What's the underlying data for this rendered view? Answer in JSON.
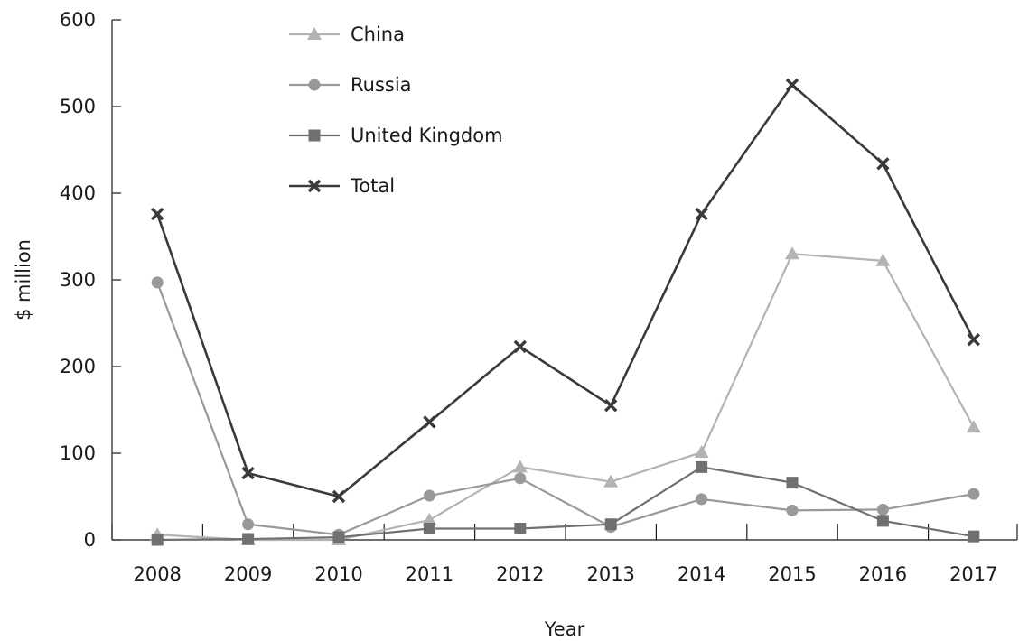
{
  "chart_data": {
    "type": "line",
    "title": "",
    "xlabel": "Year",
    "ylabel": "$ million",
    "categories": [
      "2008",
      "2009",
      "2010",
      "2011",
      "2012",
      "2013",
      "2014",
      "2015",
      "2016",
      "2017"
    ],
    "ylim": [
      0,
      600
    ],
    "yticks": [
      0,
      100,
      200,
      300,
      400,
      500,
      600
    ],
    "grid": false,
    "legend_position": "top-center",
    "series": [
      {
        "name": "China",
        "marker": "triangle",
        "color": "#b3b3b3",
        "values": [
          6,
          0,
          0,
          23,
          84,
          67,
          101,
          330,
          322,
          130
        ]
      },
      {
        "name": "Russia",
        "marker": "circle",
        "color": "#999999",
        "values": [
          297,
          18,
          6,
          51,
          71,
          15,
          47,
          34,
          35,
          53
        ]
      },
      {
        "name": "United Kingdom",
        "marker": "square",
        "color": "#707070",
        "values": [
          0,
          1,
          3,
          13,
          13,
          18,
          84,
          66,
          22,
          4
        ]
      },
      {
        "name": "Total",
        "marker": "x",
        "color": "#3a3a3a",
        "values": [
          376,
          77,
          50,
          136,
          223,
          155,
          376,
          525,
          434,
          231
        ]
      }
    ]
  }
}
